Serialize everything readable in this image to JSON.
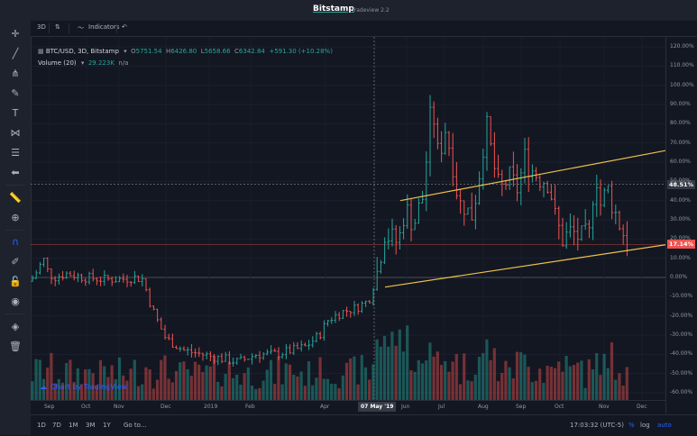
{
  "window": {
    "brand": "Bitstamp",
    "subtitle": "Tradeview 2.2"
  },
  "header": {
    "resolution_label": "3D",
    "compare_icon": "compare-icon",
    "indicators_label": "Indicators",
    "undo_icon": "undo-icon"
  },
  "legend": {
    "symbol": "BTC/USD, 3D, Bitstamp",
    "open_k": "O",
    "open": "5751.54",
    "high_k": "H",
    "high": "6426.80",
    "low_k": "L",
    "low": "5658.66",
    "close_k": "C",
    "close": "6342.84",
    "change": "+591.30 (+10.28%)",
    "volume_label": "Volume (20)",
    "volume_value": "29.223K",
    "volume_na": "n/a"
  },
  "price_axis": {
    "ticks": [
      "120.00%",
      "110.00%",
      "100.00%",
      "90.00%",
      "80.00%",
      "70.00%",
      "60.00%",
      "50.00%",
      "40.00%",
      "30.00%",
      "20.00%",
      "10.00%",
      "0.00%",
      "-10.00%",
      "-20.00%",
      "-30.00%",
      "-40.00%",
      "-50.00%",
      "-60.00%"
    ],
    "crosshair_tag": "48.51%",
    "last_tag": "17.14%"
  },
  "time_axis": {
    "ticks": [
      "Sep",
      "Oct",
      "Nov",
      "Dec",
      "2019",
      "Feb",
      "Apr",
      "Jun",
      "Jul",
      "Aug",
      "Sep",
      "Oct",
      "Nov",
      "Dec"
    ],
    "crosshair_tag": "07 May '19"
  },
  "bottom": {
    "ranges": [
      "1D",
      "7D",
      "1M",
      "3M",
      "1Y"
    ],
    "goto": "Go to...",
    "clock": "17:03:32 (UTC-5)",
    "percent": "%",
    "log": "log",
    "auto": "auto"
  },
  "watermark": "Chart by TradingView",
  "colors": {
    "up": "#26a69a",
    "down": "#ef5350",
    "channel": "#f0c14b",
    "accent": "#2962ff"
  },
  "chart_data": {
    "type": "candlestick",
    "symbol": "BTC/USD",
    "interval": "3D",
    "y_axis": {
      "unit": "percent change",
      "range": [
        -60,
        120
      ]
    },
    "x_axis": {
      "range": [
        "Aug 2018",
        "Dec 2019"
      ]
    },
    "last_change_pct": 17.14,
    "crosshair_pct": 48.51,
    "channel_upper": [
      {
        "x": "Apr 2019",
        "y": 40
      },
      {
        "x": "Dec 2019",
        "y": 66
      }
    ],
    "channel_lower": [
      {
        "x": "May 2019",
        "y": -5
      },
      {
        "x": "Dec 2019",
        "y": 17
      }
    ],
    "volume_length": 20
  }
}
